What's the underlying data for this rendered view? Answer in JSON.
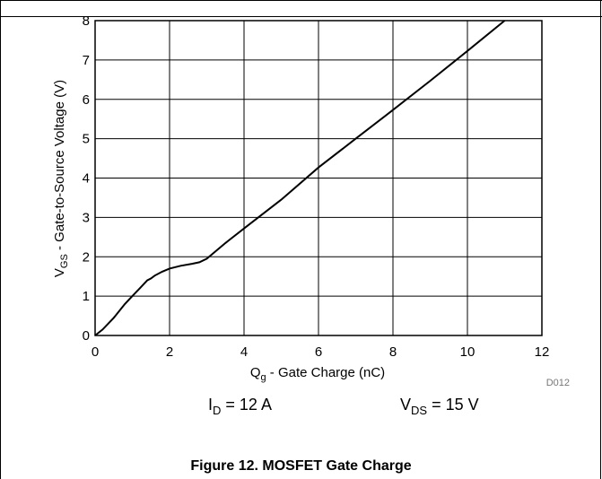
{
  "chart_data": {
    "type": "line",
    "xlabel_parts": {
      "main": "Q",
      "sub": "g",
      "rest": " - Gate Charge (nC)"
    },
    "ylabel_parts": {
      "main": "V",
      "sub": "GS",
      "rest": " - Gate-to-Source Voltage (V)"
    },
    "xlim": [
      0,
      12
    ],
    "ylim": [
      0,
      8
    ],
    "xticks": [
      "0",
      "2",
      "4",
      "6",
      "8",
      "10",
      "12"
    ],
    "yticks": [
      "0",
      "1",
      "2",
      "3",
      "4",
      "5",
      "6",
      "7",
      "8"
    ],
    "grid": true,
    "series": [
      {
        "x": [
          0,
          0.2,
          0.5,
          0.8,
          1.0,
          1.2,
          1.4,
          1.5,
          1.6,
          1.8,
          2.0,
          2.3,
          2.6,
          2.8,
          3.0,
          3.5,
          4.0,
          5.0,
          6.0,
          7.0,
          8.0,
          9.0,
          10.0,
          11.0
        ],
        "y": [
          0,
          0.15,
          0.45,
          0.8,
          1.0,
          1.2,
          1.4,
          1.45,
          1.52,
          1.62,
          1.7,
          1.77,
          1.82,
          1.86,
          1.95,
          2.35,
          2.72,
          3.45,
          4.27,
          5.0,
          5.73,
          6.47,
          7.23,
          8.0
        ]
      }
    ],
    "conditions": [
      {
        "main": "I",
        "sub": "D",
        "rest": " = 12 A"
      },
      {
        "main": "V",
        "sub": "DS",
        "rest": " = 15 V"
      }
    ],
    "figure_code": "D012"
  },
  "caption": "Figure 12. MOSFET Gate Charge"
}
